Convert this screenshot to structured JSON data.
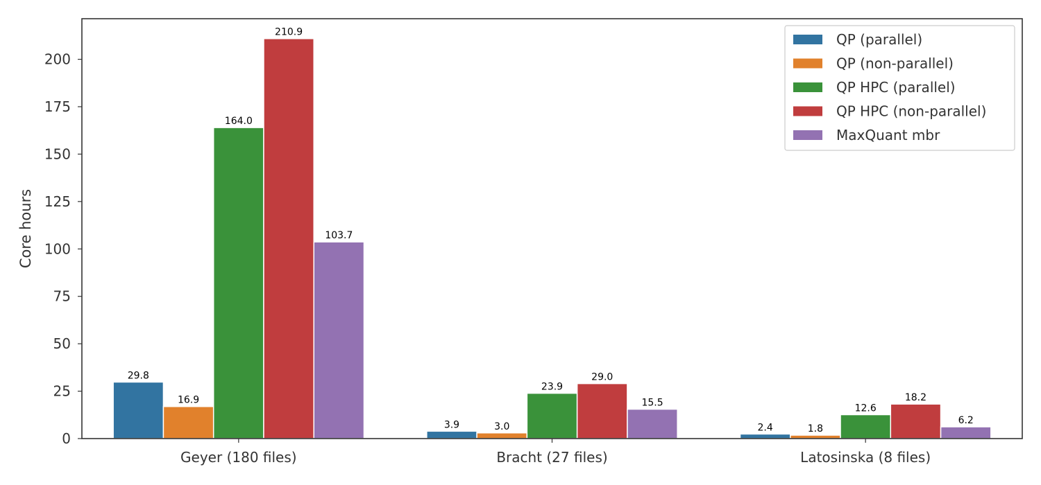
{
  "chart_data": {
    "type": "bar",
    "categories": [
      "Geyer (180 files)",
      "Bracht (27 files)",
      "Latosinska (8 files)"
    ],
    "series": [
      {
        "name": "QP (parallel)",
        "values": [
          29.8,
          3.9,
          2.4
        ],
        "color": "#3274a1"
      },
      {
        "name": "QP (non-parallel)",
        "values": [
          16.9,
          3.0,
          1.8
        ],
        "color": "#e1812c"
      },
      {
        "name": "QP HPC (parallel)",
        "values": [
          164.0,
          23.9,
          12.6
        ],
        "color": "#3a923a"
      },
      {
        "name": "QP HPC (non-parallel)",
        "values": [
          210.9,
          29.0,
          18.2
        ],
        "color": "#c03d3e"
      },
      {
        "name": "MaxQuant mbr",
        "values": [
          103.7,
          15.5,
          6.2
        ],
        "color": "#9372b2"
      }
    ],
    "xlabel": "",
    "ylabel": "Core hours",
    "ylim": [
      0,
      221.4
    ],
    "yticks": [
      0,
      25,
      50,
      75,
      100,
      125,
      150,
      175,
      200
    ],
    "grid": false,
    "legend_position": "top-right"
  }
}
